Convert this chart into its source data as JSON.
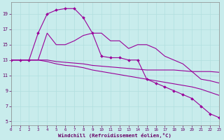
{
  "xlabel": "Windchill (Refroidissement éolien,°C)",
  "background_color": "#c8ecec",
  "grid_color": "#b0dede",
  "line_color": "#990099",
  "xlim": [
    0,
    23
  ],
  "ylim": [
    4.5,
    20.5
  ],
  "yticks": [
    5,
    7,
    9,
    11,
    13,
    15,
    17,
    19
  ],
  "xticks": [
    0,
    1,
    2,
    3,
    4,
    5,
    6,
    7,
    8,
    9,
    10,
    11,
    12,
    13,
    14,
    15,
    16,
    17,
    18,
    19,
    20,
    21,
    22,
    23
  ],
  "series": [
    {
      "x": [
        0,
        1,
        2,
        3,
        4,
        5,
        6,
        7,
        8,
        9,
        10,
        11,
        12,
        13,
        14,
        15,
        16,
        17,
        18,
        19,
        20,
        21,
        22,
        23
      ],
      "y": [
        13,
        13,
        13,
        13,
        13,
        12.8,
        12.7,
        12.6,
        12.5,
        12.3,
        12.2,
        12.1,
        12.0,
        11.9,
        11.8,
        11.7,
        11.7,
        11.7,
        11.7,
        11.6,
        11.5,
        11.5,
        11.5,
        11.4
      ],
      "marker": false
    },
    {
      "x": [
        0,
        1,
        2,
        3,
        4,
        5,
        6,
        7,
        8,
        9,
        10,
        11,
        12,
        13,
        14,
        15,
        16,
        17,
        18,
        19,
        20,
        21,
        22,
        23
      ],
      "y": [
        13,
        13,
        13,
        13,
        12.8,
        12.5,
        12.3,
        12.2,
        12.0,
        11.7,
        11.5,
        11.3,
        11.1,
        10.9,
        10.7,
        10.5,
        10.3,
        10.1,
        9.9,
        9.7,
        9.5,
        9.2,
        8.8,
        8.4
      ],
      "marker": false
    },
    {
      "x": [
        0,
        1,
        2,
        3,
        4,
        5,
        6,
        7,
        8,
        9,
        10,
        11,
        12,
        13,
        14,
        15,
        16,
        17,
        18,
        19,
        20,
        21,
        22,
        23
      ],
      "y": [
        13,
        13,
        13,
        16.5,
        19,
        19.5,
        19.7,
        19.7,
        18.5,
        16.5,
        13.5,
        13.3,
        13.3,
        13.0,
        13.0,
        10.5,
        10.0,
        9.5,
        9.0,
        8.5,
        8.0,
        7.0,
        6.0,
        5.5
      ],
      "marker": true
    },
    {
      "x": [
        0,
        1,
        2,
        3,
        4,
        5,
        6,
        7,
        8,
        9,
        10,
        11,
        12,
        13,
        14,
        15,
        16,
        17,
        18,
        19,
        20,
        21,
        22,
        23
      ],
      "y": [
        13,
        13,
        13,
        13,
        16.5,
        15.0,
        15.0,
        15.5,
        16.2,
        16.5,
        16.5,
        15.5,
        15.5,
        14.5,
        15.0,
        15.0,
        14.5,
        13.5,
        13.0,
        12.5,
        11.5,
        10.5,
        10.3,
        10.0
      ],
      "marker": false
    }
  ]
}
